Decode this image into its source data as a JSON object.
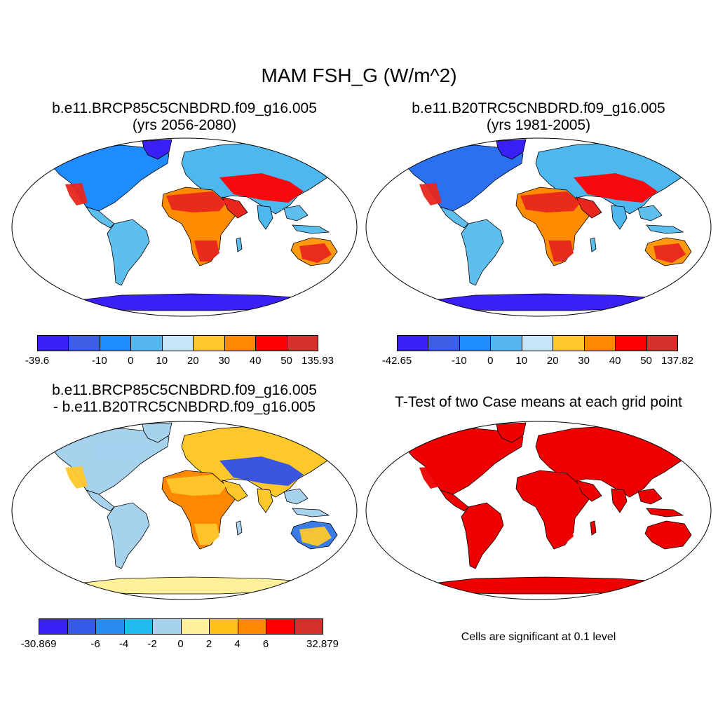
{
  "title": "MAM FSH_G (W/m^2)",
  "panels": [
    {
      "id": "p1",
      "title_line1": "b.e11.BRCP85C5CNBDRD.f09_g16.005",
      "title_line2": "(yrs 2056-2080)",
      "land_colors": {
        "north": "#1e8cff",
        "mid": "#4db8f0",
        "desert": "#e8261e",
        "desert2": "#ff0000",
        "south": "#5ebfef",
        "africa_s": "#ff8c00",
        "aus": "#ff9a10",
        "antarctic": "#3a20f5",
        "greenland": "#3a20f5"
      },
      "labelbar": {
        "colors": [
          "#3a20f5",
          "#3c5ee4",
          "#1e8cff",
          "#55b6ee",
          "#c4e6f6",
          "#ffc82a",
          "#ff8800",
          "#ff0000",
          "#d6302a"
        ],
        "labels": [
          "-39.6",
          "-10",
          "0",
          "10",
          "20",
          "30",
          "40",
          "50",
          "135.93"
        ],
        "label_slots": [
          0,
          2,
          3,
          4,
          5,
          6,
          7,
          8,
          9
        ]
      }
    },
    {
      "id": "p2",
      "title_line1": "b.e11.B20TRC5CNBDRD.f09_g16.005",
      "title_line2": "(yrs 1981-2005)",
      "land_colors": {
        "north": "#2a70f0",
        "mid": "#4db8f0",
        "desert": "#e8261e",
        "desert2": "#ff0000",
        "south": "#5ebfef",
        "africa_s": "#ff8c00",
        "aus": "#ff9a10",
        "antarctic": "#3a20f5",
        "greenland": "#3a20f5"
      },
      "labelbar": {
        "colors": [
          "#3a20f5",
          "#3c5ee4",
          "#1e8cff",
          "#55b6ee",
          "#c4e6f6",
          "#ffc82a",
          "#ff8800",
          "#ff0000",
          "#d6302a"
        ],
        "labels": [
          "-42.65",
          "-10",
          "0",
          "10",
          "20",
          "30",
          "40",
          "50",
          "137.82"
        ],
        "label_slots": [
          0,
          2,
          3,
          4,
          5,
          6,
          7,
          8,
          9
        ]
      }
    },
    {
      "id": "p3",
      "title_line1": "b.e11.BRCP85C5CNBDRD.f09_g16.005",
      "title_line2": "- b.e11.B20TRC5CNBDRD.f09_g16.005",
      "land_colors": {
        "north": "#a6d2ee",
        "mid": "#ffc82a",
        "desert": "#ffc82a",
        "desert2": "#3050e8",
        "south": "#a6d2ee",
        "africa_s": "#ff8800",
        "aus": "#3a7be8",
        "antarctic": "#fff09a",
        "greenland": "#a6d2ee"
      },
      "labelbar": {
        "colors": [
          "#3a20f5",
          "#3558e6",
          "#2a8cf0",
          "#1fbcf0",
          "#a6d2ee",
          "#fff09a",
          "#ffc21a",
          "#ff8800",
          "#ff0000",
          "#d6302a"
        ],
        "labels": [
          "-30.869",
          "-6",
          "-4",
          "-2",
          "0",
          "2",
          "4",
          "6",
          "32.879"
        ],
        "label_slots": [
          0,
          2,
          3,
          4,
          5,
          6,
          7,
          8,
          10
        ]
      }
    },
    {
      "id": "p4",
      "title_line1": "T-Test of two Case means at each grid point",
      "title_line2": "",
      "land_colors": {
        "north": "#ee0000",
        "mid": "#ee0000",
        "desert": "#ee0000",
        "desert2": "#ee0000",
        "south": "#ee0000",
        "africa_s": "#ee0000",
        "aus": "#ee0000",
        "antarctic": "#ee0000",
        "greenland": "#ee0000"
      },
      "note": "Cells are significant at 0.1 level"
    }
  ]
}
